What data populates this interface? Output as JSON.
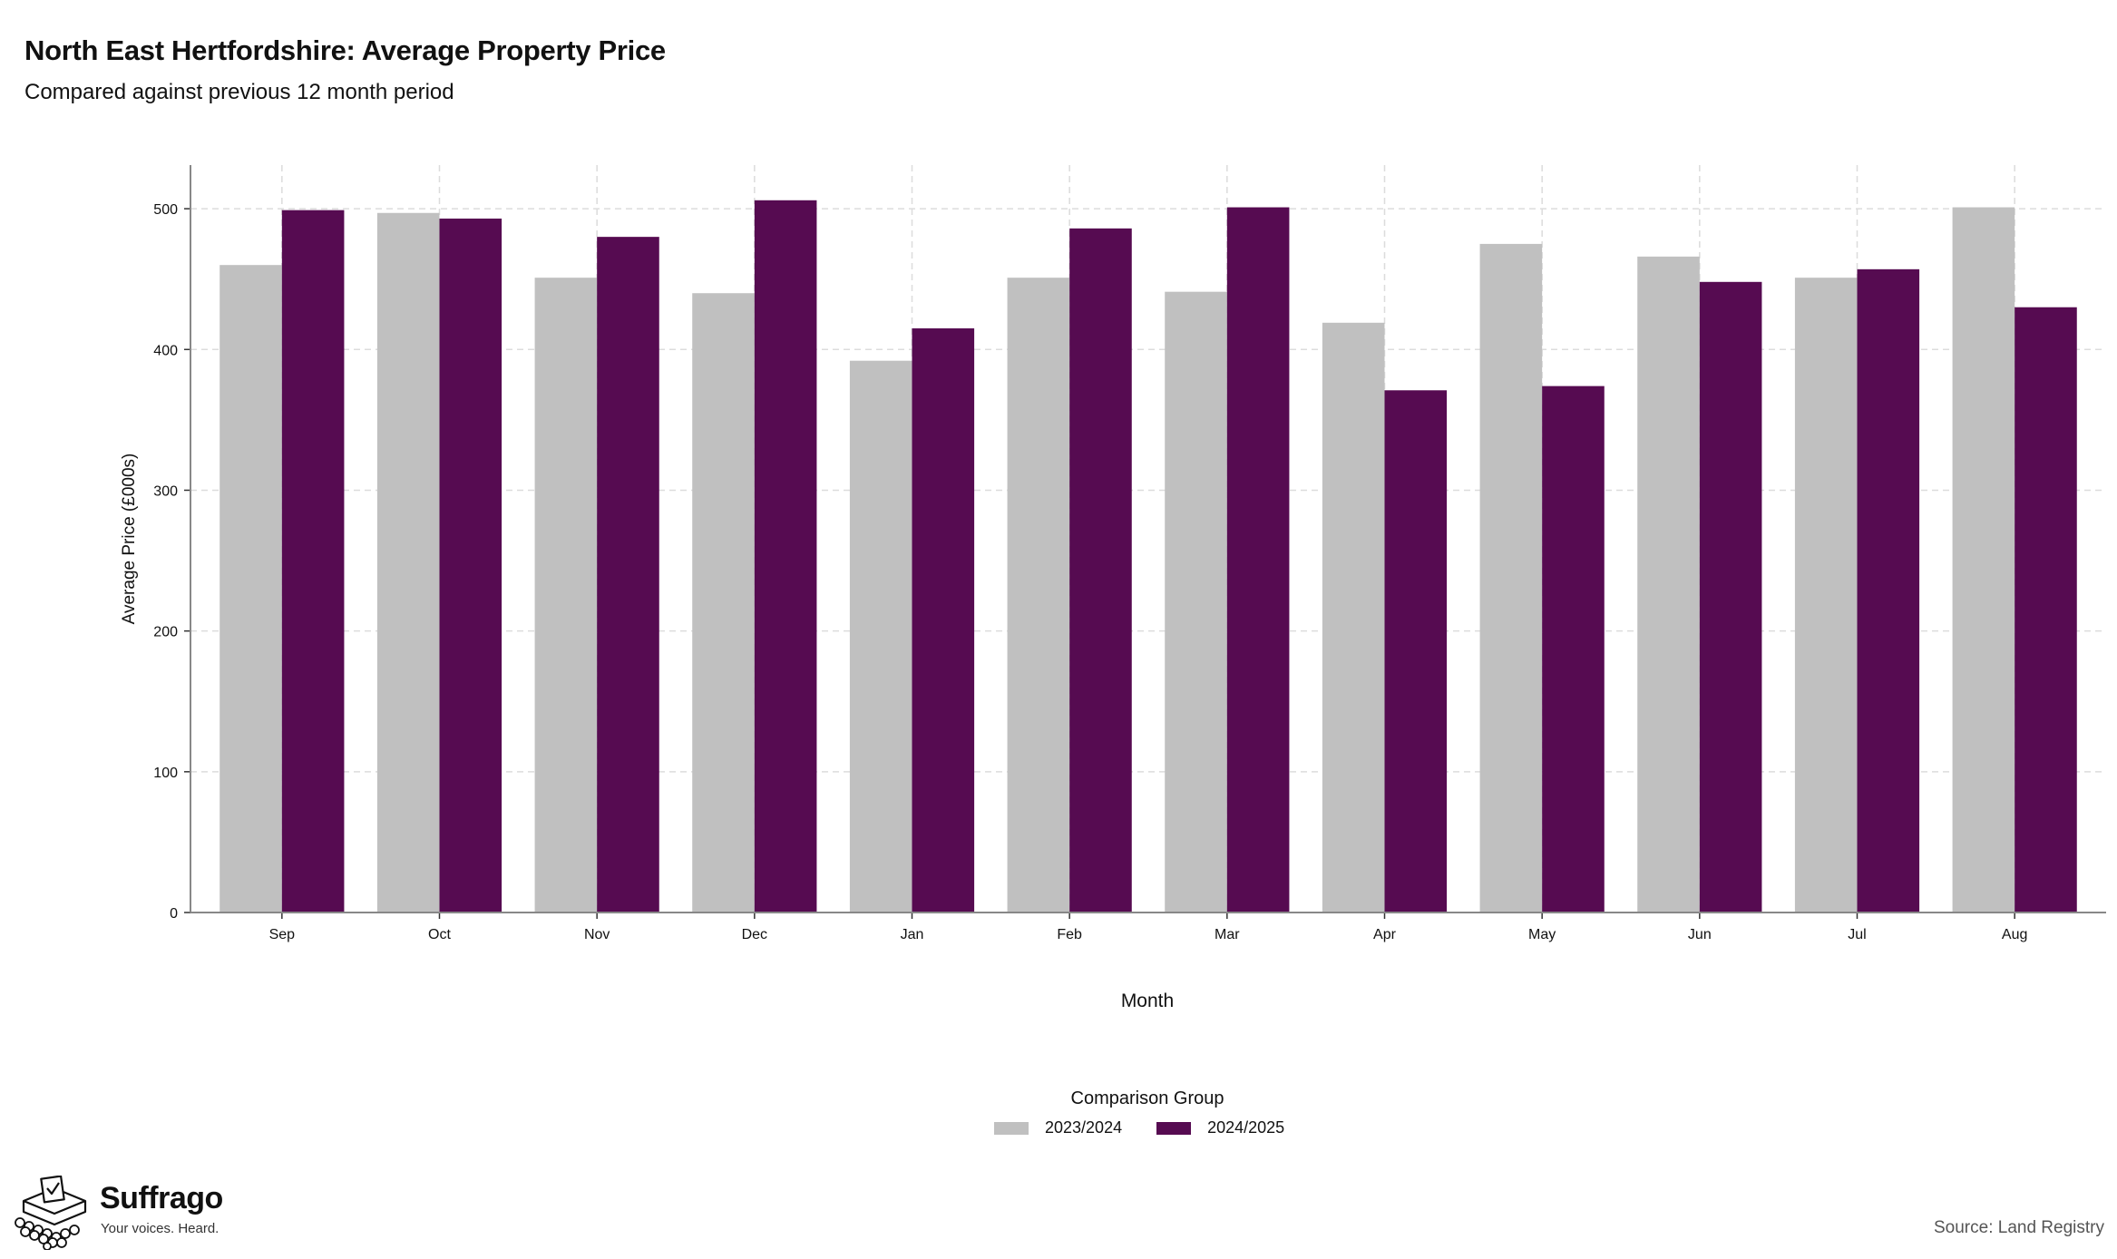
{
  "header": {
    "title": "North East Hertfordshire: Average Property Price",
    "subtitle": "Compared against previous 12 month period"
  },
  "chart_data": {
    "type": "bar",
    "categories": [
      "Sep",
      "Oct",
      "Nov",
      "Dec",
      "Jan",
      "Feb",
      "Mar",
      "Apr",
      "May",
      "Jun",
      "Jul",
      "Aug"
    ],
    "series": [
      {
        "name": "2023/2024",
        "color": "#c0c0c0",
        "values": [
          460,
          497,
          451,
          440,
          392,
          451,
          441,
          419,
          475,
          466,
          451,
          501
        ]
      },
      {
        "name": "2024/2025",
        "color": "#560b51",
        "values": [
          499,
          493,
          480,
          506,
          415,
          486,
          501,
          371,
          374,
          448,
          457,
          430
        ]
      }
    ],
    "xlabel": "Month",
    "ylabel": "Average Price (£000s)",
    "ylim": [
      0,
      531
    ],
    "yticks": [
      0,
      100,
      200,
      300,
      400,
      500
    ],
    "grid": true,
    "legend_position": "bottom",
    "legend_title": "Comparison Group"
  },
  "footer": {
    "brand_name": "Suffrago",
    "brand_tagline": "Your voices. Heard.",
    "source": "Source: Land Registry"
  }
}
